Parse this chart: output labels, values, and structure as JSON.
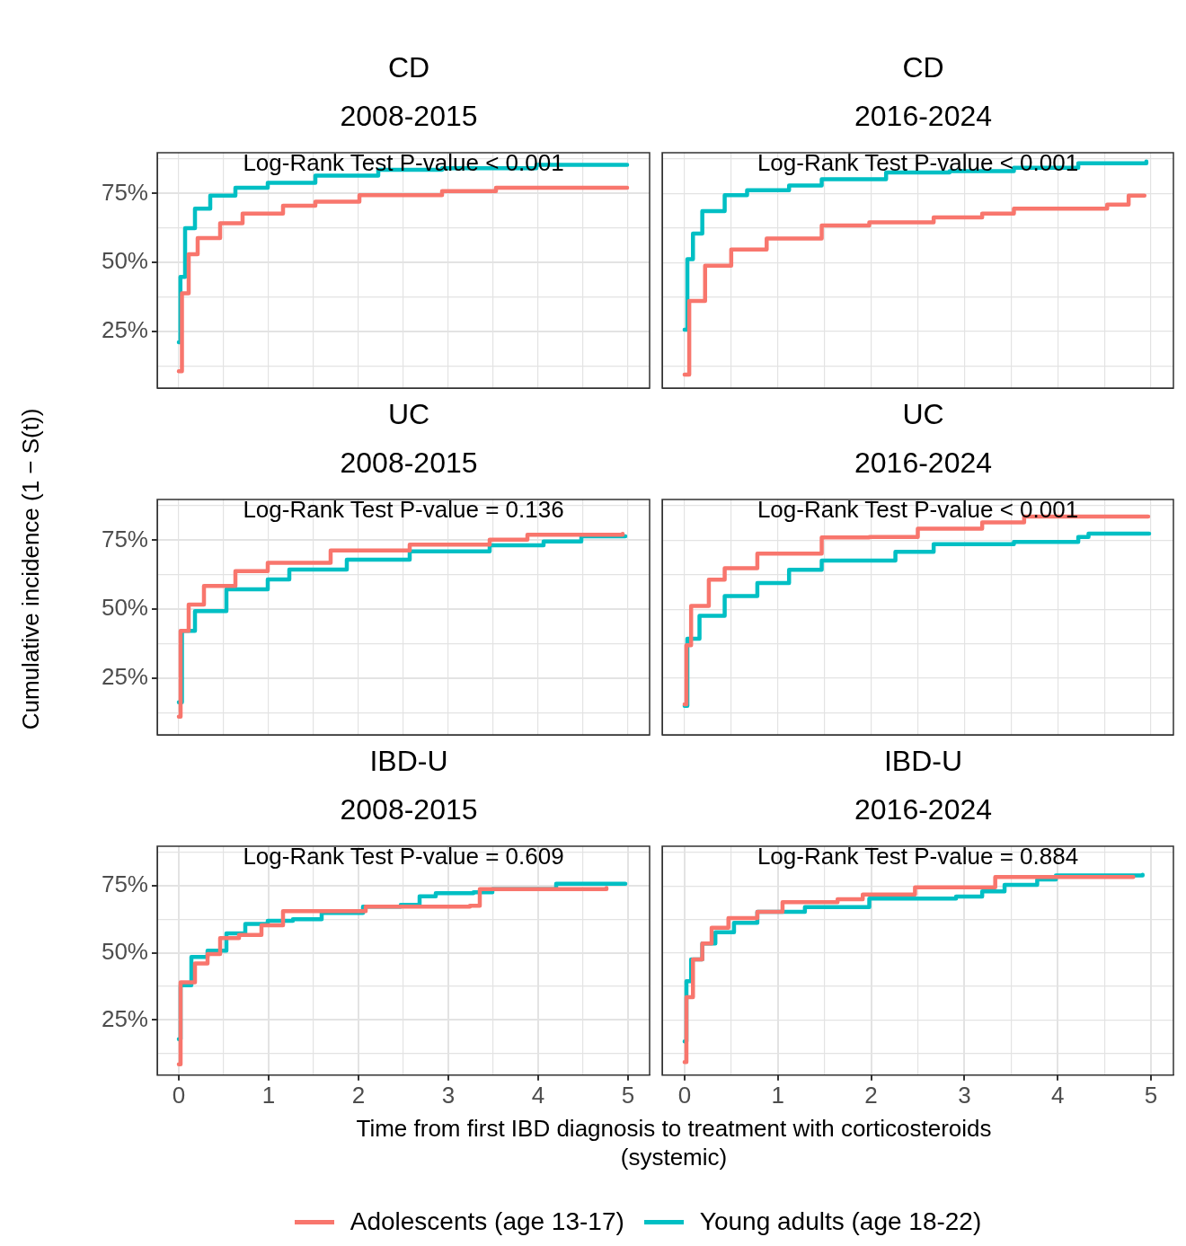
{
  "chart_data": [
    {
      "type": "step",
      "title": "CD\n2008-2015",
      "annotations": [
        "Log-Rank Test P-value < 0.001"
      ],
      "xlim": [
        -0.24,
        5.24
      ],
      "ylim": [
        4.4,
        89.8
      ],
      "xticks": [
        {
          "value": 0,
          "label": null
        },
        {
          "value": 0.5,
          "label": null
        },
        {
          "value": 1,
          "label": null
        },
        {
          "value": 1.5,
          "label": null
        },
        {
          "value": 2,
          "label": null
        },
        {
          "value": 2.5,
          "label": null
        },
        {
          "value": 3,
          "label": null
        },
        {
          "value": 3.5,
          "label": null
        },
        {
          "value": 4,
          "label": null
        },
        {
          "value": 4.5,
          "label": null
        },
        {
          "value": 5,
          "label": null
        }
      ],
      "yticks": [
        {
          "value": 12.5,
          "label": null
        },
        {
          "value": 25,
          "label": "25%"
        },
        {
          "value": 37.5,
          "label": null
        },
        {
          "value": 50,
          "label": "50%"
        },
        {
          "value": 62.5,
          "label": null
        },
        {
          "value": 75,
          "label": "75%"
        },
        {
          "value": 87.5,
          "label": null
        }
      ],
      "grid": true,
      "tick_labels": "y",
      "legend": "bottom",
      "series": [
        {
          "name": "Adolescents (age 13-17)",
          "color": "#f8766d",
          "x": [
            0,
            0.035,
            0.11,
            0.21,
            0.46,
            0.71,
            1.16,
            1.52,
            2.01,
            2.93,
            3.53,
            4.99
          ],
          "values": [
            10.5,
            38.8,
            53,
            58.8,
            64.2,
            67.7,
            70.6,
            72,
            74.4,
            75.9,
            77.1,
            77.1
          ]
        },
        {
          "name": "Young adults (age 18-22)",
          "color": "#00bfc4",
          "x": [
            0,
            0.018,
            0.07,
            0.18,
            0.35,
            0.63,
            0.99,
            1.52,
            2.22,
            2.93,
            3.98,
            4.99
          ],
          "values": [
            21,
            44.7,
            62.4,
            69.5,
            74.2,
            77.1,
            78.9,
            81.5,
            83.6,
            84.2,
            85.4,
            85.4
          ]
        }
      ]
    },
    {
      "type": "step",
      "title": "CD\n2016-2024",
      "annotations": [
        "Log-Rank Test P-value < 0.001"
      ],
      "xlim": [
        -0.24,
        5.24
      ],
      "ylim": [
        4.4,
        89.8
      ],
      "xticks": [
        {
          "value": 0,
          "label": null
        },
        {
          "value": 0.5,
          "label": null
        },
        {
          "value": 1,
          "label": null
        },
        {
          "value": 1.5,
          "label": null
        },
        {
          "value": 2,
          "label": null
        },
        {
          "value": 2.5,
          "label": null
        },
        {
          "value": 3,
          "label": null
        },
        {
          "value": 3.5,
          "label": null
        },
        {
          "value": 4,
          "label": null
        },
        {
          "value": 4.5,
          "label": null
        },
        {
          "value": 5,
          "label": null
        }
      ],
      "yticks": [
        {
          "value": 12.5,
          "label": null
        },
        {
          "value": 25,
          "label": null
        },
        {
          "value": 37.5,
          "label": null
        },
        {
          "value": 50,
          "label": null
        },
        {
          "value": 62.5,
          "label": null
        },
        {
          "value": 75,
          "label": null
        },
        {
          "value": 87.5,
          "label": null
        }
      ],
      "grid": true,
      "tick_labels": false,
      "series": [
        {
          "color": "#f8766d",
          "x": [
            0,
            0.05,
            0.22,
            0.5,
            0.88,
            1.47,
            1.98,
            2.67,
            3.19,
            3.53,
            4.47,
            4.53,
            4.67,
            4.76,
            4.93
          ],
          "values": [
            9.3,
            36,
            48.8,
            54.7,
            58.7,
            63.4,
            64.5,
            66.3,
            67.7,
            69.5,
            69.5,
            71,
            71,
            74.2,
            74.2
          ]
        },
        {
          "color": "#00bfc4",
          "x": [
            0,
            0.03,
            0.09,
            0.19,
            0.43,
            0.67,
            1.12,
            1.47,
            2.16,
            2.84,
            3.53,
            4.22,
            4.95
          ],
          "values": [
            25.6,
            51.2,
            60.5,
            68.6,
            74.4,
            76.2,
            77.9,
            80.2,
            82.6,
            83.1,
            84.3,
            86,
            86.6
          ]
        }
      ]
    },
    {
      "type": "step",
      "title": "UC\n2008-2015",
      "annotations": [
        "Log-Rank Test P-value = 0.136"
      ],
      "ylabel": "Cumulative incidence (1 − S(t))",
      "xlim": [
        -0.24,
        5.24
      ],
      "ylim": [
        4.4,
        89.8
      ],
      "xticks": [
        {
          "value": 0,
          "label": null
        },
        {
          "value": 0.5,
          "label": null
        },
        {
          "value": 1,
          "label": null
        },
        {
          "value": 1.5,
          "label": null
        },
        {
          "value": 2,
          "label": null
        },
        {
          "value": 2.5,
          "label": null
        },
        {
          "value": 3,
          "label": null
        },
        {
          "value": 3.5,
          "label": null
        },
        {
          "value": 4,
          "label": null
        },
        {
          "value": 4.5,
          "label": null
        },
        {
          "value": 5,
          "label": null
        }
      ],
      "yticks": [
        {
          "value": 12.5,
          "label": null
        },
        {
          "value": 25,
          "label": "25%"
        },
        {
          "value": 37.5,
          "label": null
        },
        {
          "value": 50,
          "label": "50%"
        },
        {
          "value": 62.5,
          "label": null
        },
        {
          "value": 75,
          "label": "75%"
        },
        {
          "value": 87.5,
          "label": null
        }
      ],
      "grid": true,
      "tick_labels": "y",
      "series": [
        {
          "color": "#f8766d",
          "x": [
            0,
            0.02,
            0.11,
            0.28,
            0.63,
            0.99,
            1.69,
            2.57,
            3.46,
            3.88,
            4.94
          ],
          "values": [
            11,
            42.1,
            51.7,
            58.4,
            63.8,
            66.8,
            71.3,
            73.4,
            75.2,
            77,
            77.3
          ]
        },
        {
          "color": "#00bfc4",
          "x": [
            0,
            0.035,
            0.18,
            0.53,
            0.99,
            1.23,
            1.87,
            2.57,
            3.46,
            4.06,
            4.48,
            4.97
          ],
          "values": [
            16.2,
            42.1,
            49.3,
            57.2,
            60.8,
            64.4,
            68,
            71,
            73.2,
            74.6,
            76.4,
            76.4
          ]
        }
      ]
    },
    {
      "type": "step",
      "title": "UC\n2016-2024",
      "annotations": [
        "Log-Rank Test P-value < 0.001"
      ],
      "xlim": [
        -0.24,
        5.24
      ],
      "ylim": [
        4.4,
        89.8
      ],
      "xticks": [
        {
          "value": 0,
          "label": null
        },
        {
          "value": 0.5,
          "label": null
        },
        {
          "value": 1,
          "label": null
        },
        {
          "value": 1.5,
          "label": null
        },
        {
          "value": 2,
          "label": null
        },
        {
          "value": 2.5,
          "label": null
        },
        {
          "value": 3,
          "label": null
        },
        {
          "value": 3.5,
          "label": null
        },
        {
          "value": 4,
          "label": null
        },
        {
          "value": 4.5,
          "label": null
        },
        {
          "value": 5,
          "label": null
        }
      ],
      "yticks": [
        {
          "value": 12.5,
          "label": null
        },
        {
          "value": 25,
          "label": null
        },
        {
          "value": 37.5,
          "label": null
        },
        {
          "value": 50,
          "label": null
        },
        {
          "value": 62.5,
          "label": null
        },
        {
          "value": 75,
          "label": null
        },
        {
          "value": 87.5,
          "label": null
        }
      ],
      "grid": true,
      "tick_labels": false,
      "series": [
        {
          "color": "#f8766d",
          "x": [
            0,
            0.02,
            0.07,
            0.26,
            0.43,
            0.78,
            1.47,
            1.98,
            2.5,
            3.19,
            3.64,
            4.97
          ],
          "values": [
            15.5,
            36.9,
            51.2,
            60.7,
            64.9,
            70.2,
            76,
            76.2,
            79.2,
            81.5,
            83.6,
            83.6
          ]
        },
        {
          "color": "#00bfc4",
          "x": [
            0,
            0.03,
            0.16,
            0.43,
            0.78,
            1.12,
            1.47,
            2.26,
            2.67,
            3.53,
            4.22,
            4.33,
            4.98
          ],
          "values": [
            14.9,
            39.3,
            47.6,
            54.8,
            59.5,
            64.3,
            67.6,
            70.8,
            73.6,
            74.4,
            76.2,
            77.4,
            77.4
          ]
        }
      ]
    },
    {
      "type": "step",
      "title": "IBD-U\n2008-2015",
      "annotations": [
        "Log-Rank Test P-value = 0.609"
      ],
      "xlabel": "Time from first IBD diagnosis to treatment with corticosteroids\n(systemic)",
      "xlim": [
        -0.24,
        5.24
      ],
      "ylim": [
        4.4,
        89.8
      ],
      "xticks": [
        0,
        {
          "value": 0.5,
          "label": null
        },
        1,
        {
          "value": 1.5,
          "label": null
        },
        2,
        {
          "value": 2.5,
          "label": null
        },
        3,
        {
          "value": 3.5,
          "label": null
        },
        4,
        {
          "value": 4.5,
          "label": null
        },
        5
      ],
      "yticks": [
        {
          "value": 12.5,
          "label": null
        },
        {
          "value": 25,
          "label": "25%"
        },
        {
          "value": 37.5,
          "label": null
        },
        {
          "value": 50,
          "label": "50%"
        },
        {
          "value": 62.5,
          "label": null
        },
        {
          "value": 75,
          "label": "75%"
        },
        {
          "value": 87.5,
          "label": null
        }
      ],
      "grid": true,
      "series": [
        {
          "color": "#f8766d",
          "x": [
            0,
            0.02,
            0.18,
            0.32,
            0.46,
            0.67,
            0.92,
            1.16,
            2.01,
            2.08,
            3.24,
            3.35,
            4.76
          ],
          "values": [
            8.4,
            39,
            46.1,
            49.6,
            55.5,
            56.7,
            60.3,
            65.6,
            65.6,
            67.3,
            67.6,
            73.8,
            74.2
          ]
        },
        {
          "color": "#00bfc4",
          "x": [
            0,
            0.02,
            0.14,
            0.32,
            0.53,
            0.74,
            0.99,
            1.27,
            1.59,
            2.05,
            2.47,
            2.68,
            2.86,
            3.28,
            3.49,
            4.09,
            4.2,
            4.97
          ],
          "values": [
            17.8,
            37.9,
            48.5,
            50.8,
            57.3,
            60.8,
            62,
            62.6,
            64.9,
            67.3,
            67.9,
            71.1,
            72.3,
            72.6,
            73.8,
            73.8,
            75.8,
            75.8
          ]
        }
      ]
    },
    {
      "type": "step",
      "title": "IBD-U\n2016-2024",
      "annotations": [
        "Log-Rank Test P-value = 0.884"
      ],
      "xlim": [
        -0.24,
        5.24
      ],
      "ylim": [
        4.4,
        89.8
      ],
      "xticks": [
        0,
        {
          "value": 0.5,
          "label": null
        },
        1,
        {
          "value": 1.5,
          "label": null
        },
        2,
        {
          "value": 2.5,
          "label": null
        },
        3,
        {
          "value": 3.5,
          "label": null
        },
        4,
        {
          "value": 4.5,
          "label": null
        },
        5
      ],
      "yticks": [
        {
          "value": 12.5,
          "label": null
        },
        {
          "value": 25,
          "label": null
        },
        {
          "value": 37.5,
          "label": null
        },
        {
          "value": 50,
          "label": null
        },
        {
          "value": 62.5,
          "label": null
        },
        {
          "value": 75,
          "label": null
        },
        {
          "value": 87.5,
          "label": null
        }
      ],
      "grid": true,
      "tick_labels": "x",
      "series": [
        {
          "color": "#f8766d",
          "x": [
            0,
            0.02,
            0.09,
            0.19,
            0.29,
            0.47,
            0.78,
            1.05,
            1.64,
            1.91,
            2.47,
            3.29,
            3.33,
            4.81
          ],
          "values": [
            9.3,
            33.5,
            47.6,
            53.5,
            59.4,
            63,
            65.3,
            68.9,
            70,
            71.8,
            74.5,
            74.5,
            78.3,
            78.3
          ]
        },
        {
          "color": "#00bfc4",
          "x": [
            0,
            0.02,
            0.07,
            0.19,
            0.33,
            0.53,
            0.78,
            1.29,
            1.98,
            2.91,
            3.19,
            3.43,
            3.78,
            3.98,
            4.91
          ],
          "values": [
            17,
            39.4,
            47.6,
            53.5,
            57.7,
            61.2,
            65.3,
            67.1,
            70.3,
            71,
            73,
            75.4,
            77.4,
            78.9,
            79.2
          ]
        }
      ]
    }
  ]
}
